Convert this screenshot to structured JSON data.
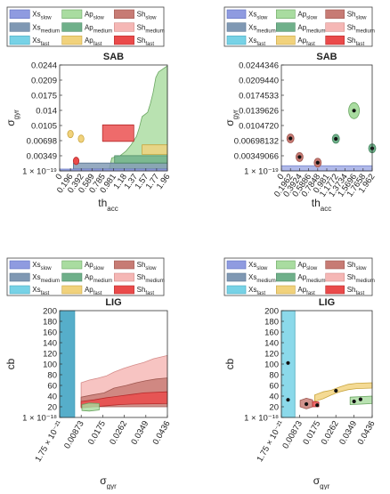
{
  "legend": {
    "entries": [
      {
        "base": "Xs",
        "sub": "slow",
        "fill": "#8f9be0",
        "stroke": "#5f6fbf"
      },
      {
        "base": "Ap",
        "sub": "slow",
        "fill": "#a9dca0",
        "stroke": "#6aa661"
      },
      {
        "base": "Sh",
        "sub": "slow",
        "fill": "#c77b74",
        "stroke": "#9e5750"
      },
      {
        "base": "Xs",
        "sub": "medium",
        "fill": "#7f98b3",
        "stroke": "#5a7591"
      },
      {
        "base": "Ap",
        "sub": "medium",
        "fill": "#6fb08a",
        "stroke": "#4c8a65"
      },
      {
        "base": "Sh",
        "sub": "medium",
        "fill": "#f5b7b5",
        "stroke": "#d48c8a"
      },
      {
        "base": "Xs",
        "sub": "fast",
        "fill": "#77d2e6",
        "stroke": "#4aa8bd"
      },
      {
        "base": "Ap",
        "sub": "fast",
        "fill": "#f1d27c",
        "stroke": "#c9a640"
      },
      {
        "base": "Sh",
        "sub": "fast",
        "fill": "#ea4a4a",
        "stroke": "#b72b2b"
      }
    ]
  },
  "chart_data": [
    {
      "type": "area",
      "title": "SAB",
      "xlabel": {
        "base": "th",
        "sub": "acc"
      },
      "ylabel": {
        "base": "σ",
        "sub": "gyr"
      },
      "x_ticks": [
        "0",
        "0.196",
        "0.392",
        "0.589",
        "0.785",
        "0.981",
        "1.18",
        "1.37",
        "1.57",
        "1.77",
        "1.96"
      ],
      "y_ticks": [
        "1 × 10⁻¹⁹",
        "0.00349",
        "0.00698",
        "0.0105",
        "0.014",
        "0.0175",
        "0.0209",
        "0.0244"
      ],
      "xlim": [
        0,
        1.96
      ],
      "ylim": [
        0,
        0.0244
      ],
      "regions": [
        {
          "series": "Ap_slow",
          "upper": [
            [
              0.9,
              0.0004
            ],
            [
              0.95,
              0.003
            ],
            [
              1.1,
              0.0035
            ],
            [
              1.2,
              0.0045
            ],
            [
              1.3,
              0.006
            ],
            [
              1.4,
              0.008
            ],
            [
              1.45,
              0.01
            ],
            [
              1.5,
              0.0125
            ],
            [
              1.6,
              0.0135
            ],
            [
              1.65,
              0.0155
            ],
            [
              1.7,
              0.018
            ],
            [
              1.75,
              0.0215
            ],
            [
              1.8,
              0.0228
            ],
            [
              1.96,
              0.0242
            ]
          ],
          "lower": [
            [
              0.9,
              0.0004
            ],
            [
              1.96,
              0.0004
            ]
          ]
        },
        {
          "series": "Xs_medium",
          "upper": [
            [
              0.25,
              0.0018
            ],
            [
              1.96,
              0.0018
            ]
          ],
          "lower": [
            [
              0.25,
              0.0004
            ],
            [
              1.96,
              0.0004
            ]
          ]
        },
        {
          "series": "Ap_medium",
          "upper": [
            [
              1.0,
              0.0035
            ],
            [
              1.96,
              0.0035
            ]
          ],
          "lower": [
            [
              1.0,
              0.0018
            ],
            [
              1.96,
              0.0018
            ]
          ]
        },
        {
          "series": "Ap_fast",
          "upper": [
            [
              1.5,
              0.006
            ],
            [
              1.96,
              0.006
            ]
          ],
          "lower": [
            [
              1.5,
              0.0038
            ],
            [
              1.96,
              0.0038
            ]
          ]
        },
        {
          "series": "Sh_fast",
          "upper": [
            [
              0.78,
              0.0106
            ],
            [
              1.35,
              0.0106
            ]
          ],
          "lower": [
            [
              0.78,
              0.0068
            ],
            [
              1.35,
              0.0068
            ]
          ]
        },
        {
          "series": "Xs_slow",
          "upper": [
            [
              0,
              0.0004
            ],
            [
              1.96,
              0.0004
            ]
          ],
          "lower": [
            [
              0,
              0
            ],
            [
              1.96,
              0
            ]
          ]
        }
      ],
      "points": [
        {
          "series": "Ap_fast",
          "x": 0.196,
          "y": 0.0085
        },
        {
          "series": "Ap_fast",
          "x": 0.39,
          "y": 0.0074
        },
        {
          "series": "Sh_fast",
          "x": 0.3,
          "y": 0.0023
        }
      ]
    },
    {
      "type": "scatter",
      "title": "SAB",
      "xlabel": {
        "base": "th",
        "sub": "acc"
      },
      "ylabel": {
        "base": "σ",
        "sub": "gyr"
      },
      "x_ticks": [
        "0",
        "0.1962",
        "0.3924",
        "0.5886",
        "0.7848",
        "0.981",
        "1.1772",
        "1.3734",
        "1.5696",
        "1.7658",
        "1.962"
      ],
      "y_ticks": [
        "1 × 10⁻¹⁹",
        "0.00349066",
        "0.00698132",
        "0.0104720",
        "0.0139626",
        "0.0174533",
        "0.0209440",
        "0.0244346"
      ],
      "xlim": [
        0,
        1.962
      ],
      "ylim": [
        0,
        0.0244346
      ],
      "band": {
        "series": "Xs_slow",
        "y0": 0,
        "y1": 0.0012
      },
      "points": [
        {
          "series": "Sh_slow",
          "x": 0.1962,
          "y": 0.0075
        },
        {
          "series": "Sh_slow",
          "x": 0.3924,
          "y": 0.0032
        },
        {
          "series": "Sh_slow",
          "x": 0.7848,
          "y": 0.0019
        },
        {
          "series": "Ap_medium",
          "x": 1.1772,
          "y": 0.0074
        },
        {
          "series": "Ap_slow",
          "x": 1.5696,
          "y": 0.0139
        },
        {
          "series": "Ap_medium",
          "x": 1.962,
          "y": 0.0052
        }
      ]
    },
    {
      "type": "area",
      "title": "LIG",
      "xlabel": {
        "base": "σ",
        "sub": "gyr"
      },
      "ylabel": {
        "base": "cb",
        "sub": ""
      },
      "x_ticks": [
        "1.75 × 10⁻²¹",
        "0.00873",
        "0.0175",
        "0.0262",
        "0.0349",
        "0.0436"
      ],
      "y_ticks": [
        "1 × 10⁻¹⁸",
        "20",
        "40",
        "60",
        "80",
        "100",
        "120",
        "140",
        "160",
        "180",
        "200"
      ],
      "xlim": [
        0,
        0.0436
      ],
      "ylim": [
        0,
        200
      ],
      "bar": {
        "series": "Xs_fast",
        "x0": 0,
        "x1": 0.0061,
        "y0": 0,
        "y1": 200
      },
      "regions": [
        {
          "series": "Sh_medium",
          "upper": [
            [
              0.0087,
              65
            ],
            [
              0.012,
              70
            ],
            [
              0.015,
              73
            ],
            [
              0.019,
              78
            ],
            [
              0.022,
              85
            ],
            [
              0.026,
              92
            ],
            [
              0.03,
              98
            ],
            [
              0.034,
              103
            ],
            [
              0.038,
              110
            ],
            [
              0.0436,
              116
            ]
          ],
          "lower": [
            [
              0.0087,
              25
            ],
            [
              0.0436,
              25
            ]
          ]
        },
        {
          "series": "Sh_slow",
          "upper": [
            [
              0.0087,
              38
            ],
            [
              0.013,
              42
            ],
            [
              0.018,
              46
            ],
            [
              0.022,
              55
            ],
            [
              0.027,
              60
            ],
            [
              0.031,
              65
            ],
            [
              0.035,
              69
            ],
            [
              0.039,
              72
            ],
            [
              0.0436,
              74
            ]
          ],
          "lower": [
            [
              0.0087,
              20
            ],
            [
              0.0436,
              20
            ]
          ]
        },
        {
          "series": "Sh_fast",
          "upper": [
            [
              0.0087,
              30
            ],
            [
              0.014,
              33
            ],
            [
              0.019,
              37
            ],
            [
              0.024,
              40
            ],
            [
              0.029,
              43
            ],
            [
              0.034,
              46
            ],
            [
              0.0436,
              48
            ]
          ],
          "lower": [
            [
              0.0087,
              18
            ],
            [
              0.014,
              20
            ],
            [
              0.019,
              22
            ],
            [
              0.024,
              24
            ],
            [
              0.029,
              25
            ],
            [
              0.0436,
              26
            ]
          ]
        },
        {
          "series": "Ap_slow",
          "upper": [
            [
              0.009,
              24
            ],
            [
              0.012,
              27
            ],
            [
              0.016,
              26
            ],
            [
              0.016,
              24
            ]
          ],
          "lower": [
            [
              0.009,
              13
            ],
            [
              0.012,
              12
            ],
            [
              0.016,
              14
            ],
            [
              0.016,
              24
            ]
          ]
        }
      ]
    },
    {
      "type": "area",
      "title": "LIG",
      "xlabel": {
        "base": "σ",
        "sub": "gyr"
      },
      "ylabel": {
        "base": "cb",
        "sub": ""
      },
      "x_ticks": [
        "1.75 × 10⁻²¹",
        "0.00873",
        "0.0175",
        "0.0262",
        "0.0349",
        "0.0436"
      ],
      "y_ticks": [
        "1 × 10⁻¹⁸",
        "20",
        "40",
        "60",
        "80",
        "100",
        "120",
        "140",
        "160",
        "180",
        "200"
      ],
      "xlim": [
        0,
        0.0436
      ],
      "ylim": [
        0,
        200
      ],
      "bar": {
        "series": "Xs_fast",
        "x0": 0,
        "x1": 0.0065,
        "y0": 0,
        "y1": 200
      },
      "regions": [
        {
          "series": "Ap_fast",
          "upper": [
            [
              0.016,
              42
            ],
            [
              0.02,
              48
            ],
            [
              0.024,
              51
            ],
            [
              0.028,
              57
            ],
            [
              0.032,
              62
            ],
            [
              0.036,
              64
            ],
            [
              0.0436,
              65
            ]
          ],
          "lower": [
            [
              0.016,
              30
            ],
            [
              0.02,
              35
            ],
            [
              0.024,
              42
            ],
            [
              0.028,
              48
            ],
            [
              0.032,
              52
            ],
            [
              0.036,
              54
            ],
            [
              0.0436,
              55
            ]
          ]
        },
        {
          "series": "Ap_slow",
          "upper": [
            [
              0.033,
              38
            ],
            [
              0.0436,
              40
            ]
          ],
          "lower": [
            [
              0.033,
              24
            ],
            [
              0.0436,
              26
            ]
          ]
        },
        {
          "series": "Sh_slow",
          "upper": [
            [
              0.009,
              32
            ],
            [
              0.012,
              36
            ],
            [
              0.015,
              33
            ],
            [
              0.015,
              20
            ]
          ],
          "lower": [
            [
              0.009,
              20
            ],
            [
              0.012,
              16
            ],
            [
              0.015,
              20
            ]
          ]
        },
        {
          "series": "Sh_fast",
          "upper": [
            [
              0.015,
              30
            ],
            [
              0.018,
              29
            ],
            [
              0.018,
              20
            ]
          ],
          "lower": [
            [
              0.015,
              20
            ],
            [
              0.018,
              20
            ]
          ]
        }
      ],
      "points": [
        {
          "series": "Xs_fast",
          "x": 0.0032,
          "y": 102
        },
        {
          "series": "Xs_fast",
          "x": 0.0032,
          "y": 33
        },
        {
          "series": "Sh_slow",
          "x": 0.012,
          "y": 25
        },
        {
          "series": "Sh_fast",
          "x": 0.0172,
          "y": 23
        },
        {
          "series": "Ap_fast",
          "x": 0.0262,
          "y": 50
        },
        {
          "series": "Ap_slow",
          "x": 0.0349,
          "y": 30
        },
        {
          "series": "Ap_slow",
          "x": 0.038,
          "y": 34
        }
      ]
    }
  ]
}
